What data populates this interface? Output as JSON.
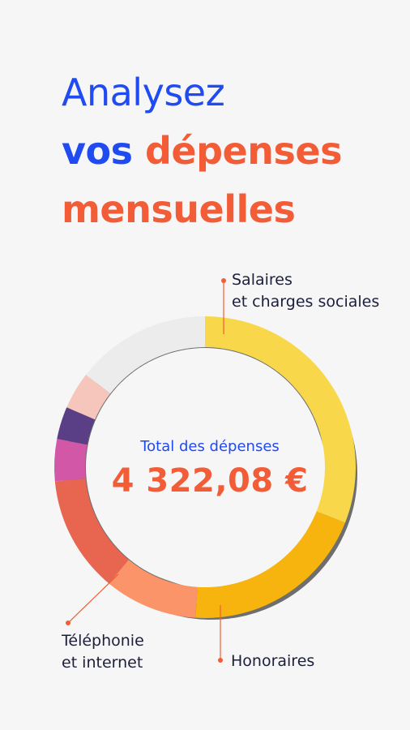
{
  "headline": {
    "line1": "Analysez",
    "line2_part1": "vos",
    "line2_part2": "dépenses",
    "line3": "mensuelles"
  },
  "colors": {
    "primary_blue": "#1f4bf0",
    "accent_orange": "#f25c36",
    "text_dark": "#1c1f3a",
    "background": "#f6f6f7"
  },
  "total": {
    "label": "Total des dépenses",
    "value": "4 322,08 €"
  },
  "callouts": {
    "salaires_line1": "Salaires",
    "salaires_line2": "et charges sociales",
    "honoraires": "Honoraires",
    "telephonie_line1": "Téléphonie",
    "telephonie_line2": "et internet"
  },
  "chart_data": {
    "type": "pie",
    "slices": [
      {
        "label": "Salaires et charges sociales",
        "share": 0.31,
        "color": "#f8d84a"
      },
      {
        "label": "Honoraires",
        "share": 0.2,
        "color": "#f7b30e"
      },
      {
        "label": "Téléphonie et internet",
        "share": 0.1,
        "color": "#fb9468"
      },
      {
        "label": "",
        "share": 0.125,
        "color": "#e86550"
      },
      {
        "label": "",
        "share": 0.045,
        "color": "#d257a6"
      },
      {
        "label": "",
        "share": 0.035,
        "color": "#5a3f86"
      },
      {
        "label": "",
        "share": 0.04,
        "color": "#f6c5bb"
      },
      {
        "label": "",
        "share": 0.145,
        "color": "#ececec"
      }
    ]
  }
}
